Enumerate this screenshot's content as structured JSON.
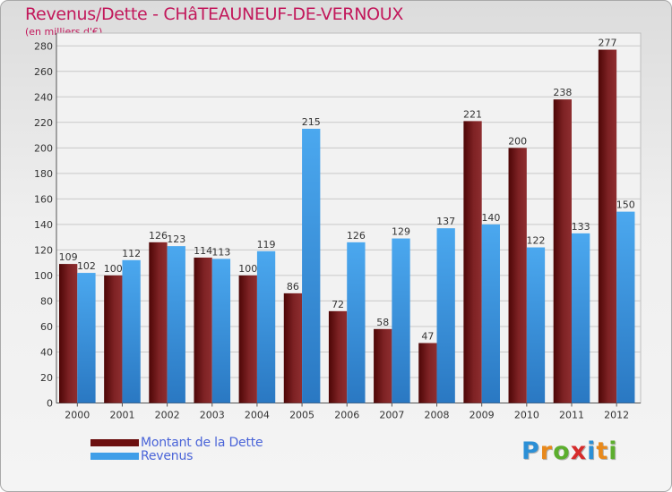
{
  "title": "Revenus/Dette - CHâTEAUNEUF-DE-VERNOUX",
  "subtitle": "(en milliers d'€)",
  "chart_data": {
    "type": "bar",
    "title": "Revenus/Dette - CHâTEAUNEUF-DE-VERNOUX",
    "ylabel": "(en milliers d'€)",
    "xlabel": "",
    "ylim": [
      0,
      290
    ],
    "yticks": [
      0,
      20,
      40,
      60,
      80,
      100,
      120,
      140,
      160,
      180,
      200,
      220,
      240,
      260,
      280
    ],
    "categories": [
      "2000",
      "2001",
      "2002",
      "2003",
      "2004",
      "2005",
      "2006",
      "2007",
      "2008",
      "2009",
      "2010",
      "2011",
      "2012"
    ],
    "series": [
      {
        "name": "Montant de la Dette",
        "color": "#7a1c1c",
        "values": [
          109,
          100,
          126,
          114,
          100,
          86,
          72,
          58,
          47,
          221,
          200,
          238,
          277
        ]
      },
      {
        "name": "Revenus",
        "color": "#3f9ee8",
        "values": [
          102,
          112,
          123,
          113,
          119,
          215,
          126,
          129,
          137,
          140,
          122,
          133,
          150
        ]
      }
    ],
    "grid": true,
    "legend": "bottom-left"
  },
  "legend": {
    "items": [
      {
        "label": "Montant de la Dette",
        "color": "#6b0f0f"
      },
      {
        "label": "Revenus",
        "color": "#3f9ee8"
      }
    ]
  },
  "logo": {
    "letters": [
      "P",
      "r",
      "o",
      "x",
      "i",
      "t",
      "i"
    ],
    "colors": [
      "#2b8fd6",
      "#e8891c",
      "#5cae2e",
      "#d62b2b",
      "#2b8fd6",
      "#e8891c",
      "#5cae2e"
    ]
  }
}
